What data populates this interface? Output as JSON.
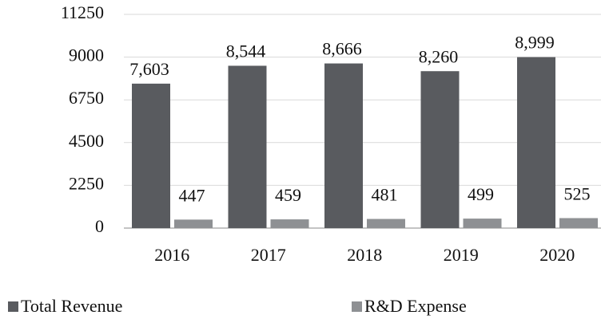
{
  "chart_data": {
    "type": "bar",
    "categories": [
      "2016",
      "2017",
      "2018",
      "2019",
      "2020"
    ],
    "series": [
      {
        "name": "Total Revenue",
        "color": "#595b5f",
        "values": [
          7603,
          8544,
          8666,
          8260,
          8999
        ],
        "value_labels": [
          "7,603",
          "8,544",
          "8,666",
          "8,260",
          "8,999"
        ]
      },
      {
        "name": "R&D Expense",
        "color": "#8e9093",
        "values": [
          447,
          459,
          481,
          499,
          525
        ]
      }
    ],
    "ylim": [
      0,
      11250
    ],
    "yticks": [
      0,
      2250,
      4500,
      6750,
      9000,
      11250
    ],
    "grid": true
  }
}
